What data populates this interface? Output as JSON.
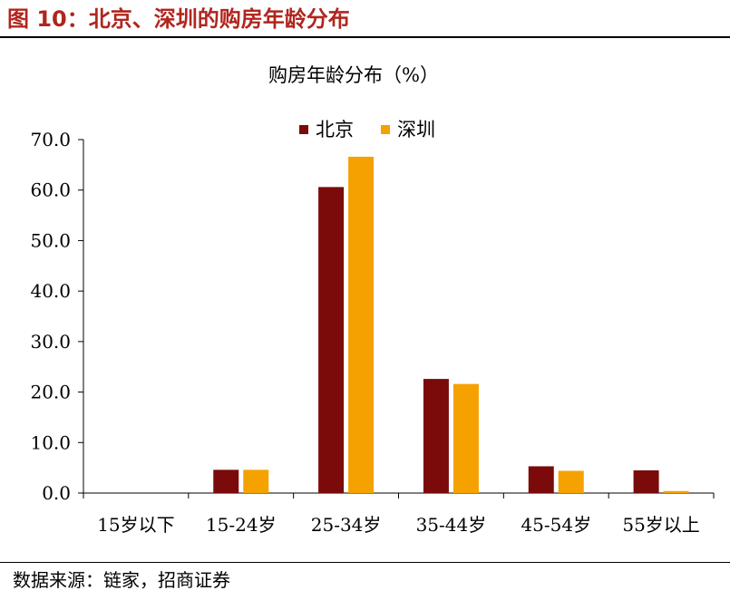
{
  "figure_title": "图 10：北京、深圳的购房年龄分布",
  "source_note": "数据来源：链家，招商证券",
  "colors": {
    "title_red": "#B0261E",
    "beijing": "#7B0A0A",
    "shenzhen": "#F5A100"
  },
  "chart_data": {
    "type": "bar",
    "title": "购房年龄分布（%）",
    "xlabel": "",
    "ylabel": "",
    "categories": [
      "15岁以下",
      "15-24岁",
      "25-34岁",
      "35-44岁",
      "45-54岁",
      "55岁以上"
    ],
    "series": [
      {
        "name": "北京",
        "color": "#7B0A0A",
        "values": [
          0.0,
          4.6,
          60.6,
          22.6,
          5.3,
          4.5
        ]
      },
      {
        "name": "深圳",
        "color": "#F5A100",
        "values": [
          0.0,
          4.6,
          66.6,
          21.6,
          4.4,
          0.4
        ]
      }
    ],
    "ylim": [
      0,
      70
    ],
    "yticks": [
      "0.0",
      "10.0",
      "20.0",
      "30.0",
      "40.0",
      "50.0",
      "60.0",
      "70.0"
    ],
    "ytick_values": [
      0,
      10,
      20,
      30,
      40,
      50,
      60,
      70
    ],
    "grid": false,
    "legend_position": "top"
  }
}
